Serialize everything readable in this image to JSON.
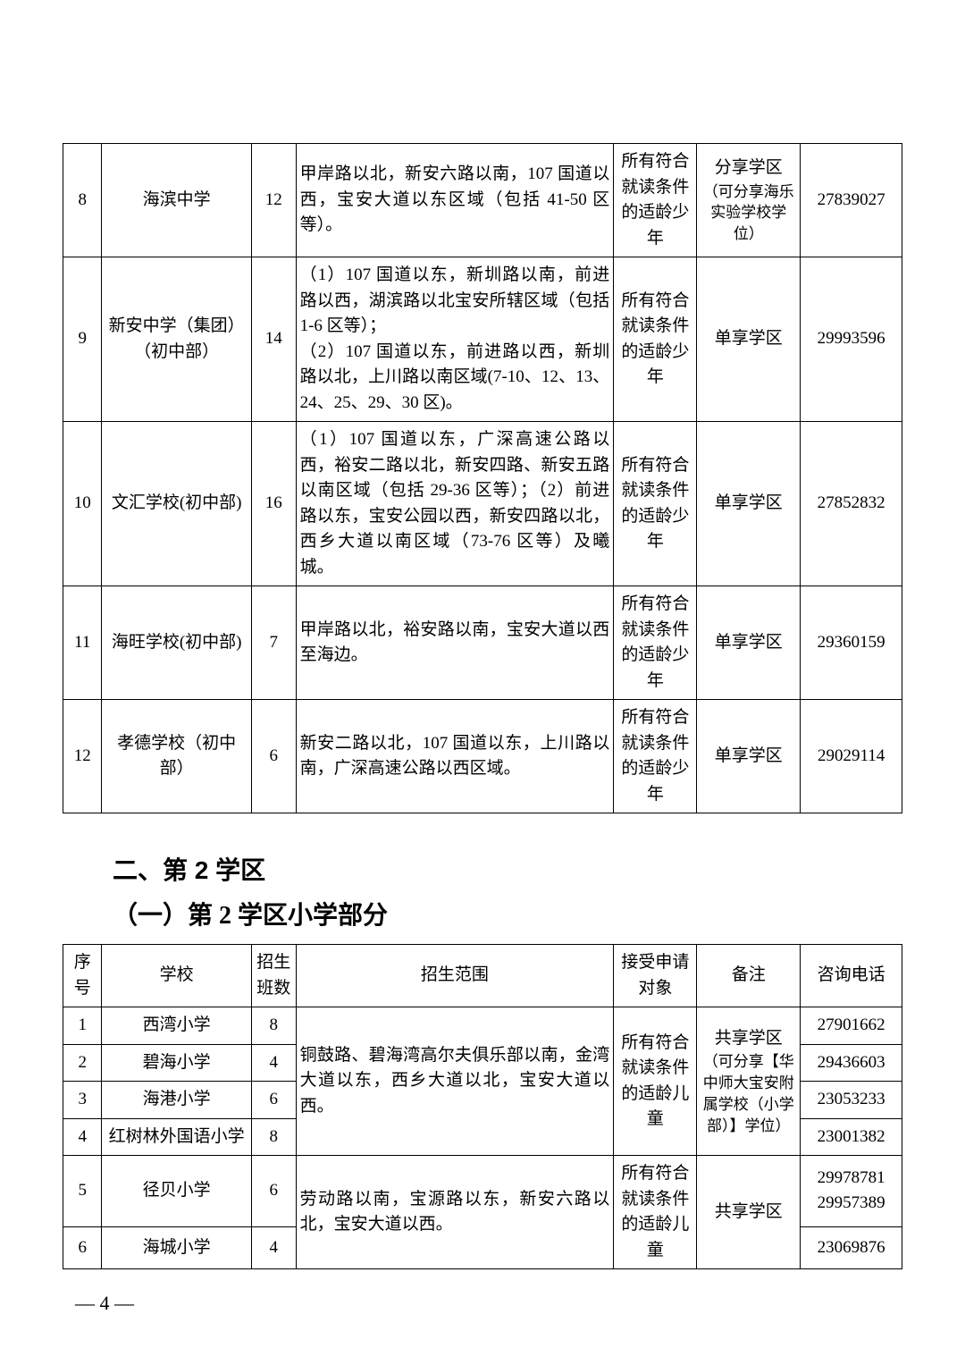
{
  "table1": {
    "rows": [
      {
        "idx": "8",
        "school": "海滨中学",
        "classes": "12",
        "scope": "甲岸路以北，新安六路以南，107 国道以西，宝安大道以东区域（包括 41-50 区等）。",
        "target": "所有符合就读条件的适龄少年",
        "note_title": "分享学区",
        "note_sub": "（可分享海乐实验学校学位）",
        "phone": "27839027"
      },
      {
        "idx": "9",
        "school": "新安中学（集团）（初中部）",
        "classes": "14",
        "scope": "（1）107 国道以东，新圳路以南，前进路以西，湖滨路以北宝安所辖区域（包括 1-6 区等）；\n（2）107 国道以东，前进路以西，新圳路以北，上川路以南区域(7-10、12、13、24、25、29、30 区)。",
        "target": "所有符合就读条件的适龄少年",
        "note": "单享学区",
        "phone": "29993596"
      },
      {
        "idx": "10",
        "school": "文汇学校(初中部)",
        "classes": "16",
        "scope": "（1）107 国道以东，广深高速公路以西，裕安二路以北，新安四路、新安五路以南区域（包括 29-36 区等）；（2）前进路以东，宝安公园以西，新安四路以北，西乡大道以南区域（73-76 区等）及曦城。",
        "target": "所有符合就读条件的适龄少年",
        "note": "单享学区",
        "phone": "27852832"
      },
      {
        "idx": "11",
        "school": "海旺学校(初中部)",
        "classes": "7",
        "scope": "甲岸路以北，裕安路以南，宝安大道以西至海边。",
        "target": "所有符合就读条件的适龄少年",
        "note": "单享学区",
        "phone": "29360159"
      },
      {
        "idx": "12",
        "school": "孝德学校（初中部）",
        "classes": "6",
        "scope": "新安二路以北，107 国道以东，上川路以南，广深高速公路以西区域。",
        "target": "所有符合就读条件的适龄少年",
        "note": "单享学区",
        "phone": "29029114"
      }
    ]
  },
  "section2_title": "二、第 2 学区",
  "section2_sub": "（一）第 2 学区小学部分",
  "table2": {
    "headers": {
      "idx": "序号",
      "school": "学校",
      "classes": "招生班数",
      "scope": "招生范围",
      "target": "接受申请对象",
      "note": "备注",
      "phone": "咨询电话"
    },
    "group1": {
      "scope": "铜鼓路、碧海湾高尔夫俱乐部以南，金湾大道以东，西乡大道以北，宝安大道以西。",
      "target": "所有符合就读条件的适龄儿童",
      "note_title": "共享学区",
      "note_sub": "（可分享【华中师大宝安附属学校（小学部）】学位）",
      "rows": [
        {
          "idx": "1",
          "school": "西湾小学",
          "classes": "8",
          "phone": "27901662"
        },
        {
          "idx": "2",
          "school": "碧海小学",
          "classes": "4",
          "phone": "29436603"
        },
        {
          "idx": "3",
          "school": "海港小学",
          "classes": "6",
          "phone": "23053233"
        },
        {
          "idx": "4",
          "school": "红树林外国语小学",
          "classes": "8",
          "phone": "23001382"
        }
      ]
    },
    "group2": {
      "scope": "劳动路以南，宝源路以东，新安六路以北，宝安大道以西。",
      "target": "所有符合就读条件的适龄儿童",
      "note": "共享学区",
      "rows": [
        {
          "idx": "5",
          "school": "径贝小学",
          "classes": "6",
          "phone": "29978781\n29957389"
        },
        {
          "idx": "6",
          "school": "海城小学",
          "classes": "4",
          "phone": "23069876"
        }
      ]
    }
  },
  "page_number": "— 4 —"
}
